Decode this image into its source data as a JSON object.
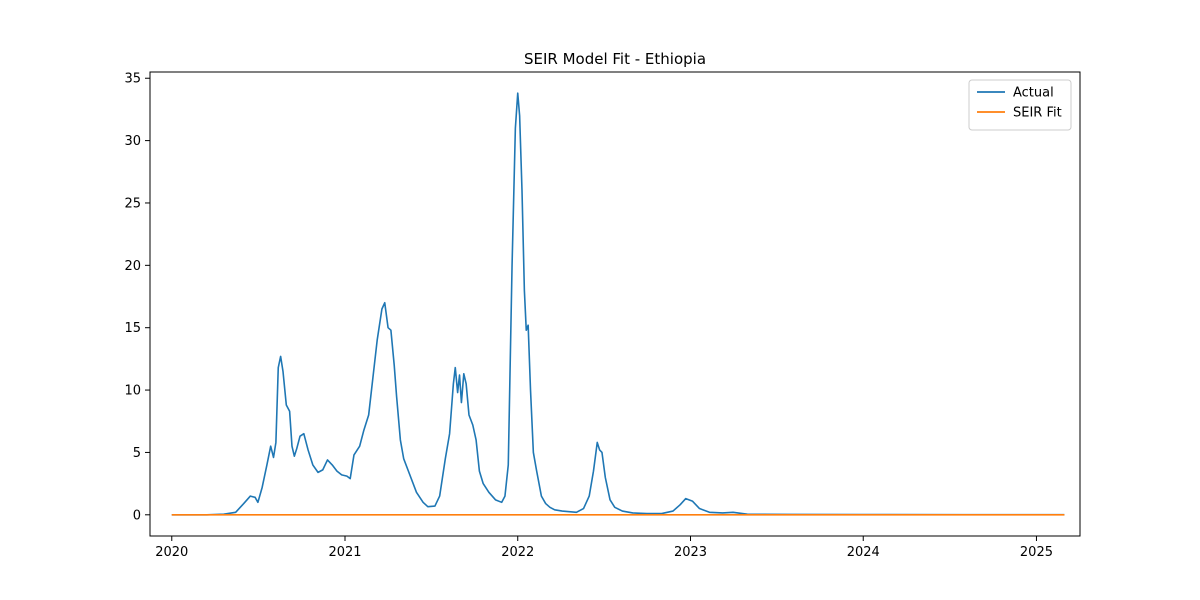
{
  "chart_data": {
    "type": "line",
    "title": "SEIR Model Fit - Ethiopia",
    "xlabel": "",
    "ylabel": "",
    "xlim": [
      "2019-11-16",
      "2025-04-03"
    ],
    "ylim": [
      -1.7,
      35.5
    ],
    "x_ticks": [
      "2020-01-01",
      "2021-01-01",
      "2022-01-01",
      "2023-01-01",
      "2024-01-01",
      "2025-01-01"
    ],
    "x_tick_labels": [
      "2020",
      "2021",
      "2022",
      "2023",
      "2024",
      "2025"
    ],
    "y_ticks": [
      0,
      5,
      10,
      15,
      20,
      25,
      30,
      35
    ],
    "y_tick_labels": [
      "0",
      "5",
      "10",
      "15",
      "20",
      "25",
      "30",
      "35"
    ],
    "grid": false,
    "legend_position": "top-right",
    "series": [
      {
        "name": "Actual",
        "color": "#1f77b4",
        "points": [
          [
            "2020-01-01",
            0
          ],
          [
            "2020-03-15",
            0
          ],
          [
            "2020-04-20",
            0.05
          ],
          [
            "2020-05-15",
            0.2
          ],
          [
            "2020-06-01",
            0.9
          ],
          [
            "2020-06-15",
            1.5
          ],
          [
            "2020-06-25",
            1.4
          ],
          [
            "2020-07-01",
            1.0
          ],
          [
            "2020-07-10",
            2.2
          ],
          [
            "2020-07-20",
            4.0
          ],
          [
            "2020-07-28",
            5.5
          ],
          [
            "2020-08-03",
            4.6
          ],
          [
            "2020-08-08",
            5.8
          ],
          [
            "2020-08-13",
            11.8
          ],
          [
            "2020-08-18",
            12.7
          ],
          [
            "2020-08-23",
            11.5
          ],
          [
            "2020-08-30",
            8.8
          ],
          [
            "2020-09-06",
            8.3
          ],
          [
            "2020-09-11",
            5.5
          ],
          [
            "2020-09-16",
            4.7
          ],
          [
            "2020-09-21",
            5.3
          ],
          [
            "2020-09-28",
            6.3
          ],
          [
            "2020-10-06",
            6.5
          ],
          [
            "2020-10-15",
            5.2
          ],
          [
            "2020-10-25",
            4.0
          ],
          [
            "2020-11-05",
            3.4
          ],
          [
            "2020-11-15",
            3.6
          ],
          [
            "2020-11-25",
            4.4
          ],
          [
            "2020-12-05",
            4.0
          ],
          [
            "2020-12-15",
            3.5
          ],
          [
            "2020-12-25",
            3.2
          ],
          [
            "2021-01-05",
            3.1
          ],
          [
            "2021-01-12",
            2.9
          ],
          [
            "2021-01-20",
            4.8
          ],
          [
            "2021-02-01",
            5.5
          ],
          [
            "2021-02-10",
            6.8
          ],
          [
            "2021-02-20",
            8.0
          ],
          [
            "2021-03-01",
            11.0
          ],
          [
            "2021-03-10",
            14.0
          ],
          [
            "2021-03-20",
            16.5
          ],
          [
            "2021-03-26",
            17.0
          ],
          [
            "2021-04-02",
            15.0
          ],
          [
            "2021-04-08",
            14.8
          ],
          [
            "2021-04-15",
            12.0
          ],
          [
            "2021-04-20",
            9.5
          ],
          [
            "2021-04-28",
            6.0
          ],
          [
            "2021-05-05",
            4.5
          ],
          [
            "2021-05-15",
            3.5
          ],
          [
            "2021-06-01",
            1.8
          ],
          [
            "2021-06-15",
            1.0
          ],
          [
            "2021-06-25",
            0.65
          ],
          [
            "2021-07-10",
            0.7
          ],
          [
            "2021-07-20",
            1.5
          ],
          [
            "2021-08-01",
            4.5
          ],
          [
            "2021-08-10",
            6.5
          ],
          [
            "2021-08-18",
            10.5
          ],
          [
            "2021-08-22",
            11.8
          ],
          [
            "2021-08-27",
            9.8
          ],
          [
            "2021-08-31",
            11.2
          ],
          [
            "2021-09-04",
            9.0
          ],
          [
            "2021-09-09",
            11.3
          ],
          [
            "2021-09-14",
            10.5
          ],
          [
            "2021-09-20",
            8.0
          ],
          [
            "2021-09-28",
            7.2
          ],
          [
            "2021-10-05",
            6.0
          ],
          [
            "2021-10-12",
            3.5
          ],
          [
            "2021-10-20",
            2.5
          ],
          [
            "2021-11-01",
            1.8
          ],
          [
            "2021-11-15",
            1.2
          ],
          [
            "2021-11-28",
            1.0
          ],
          [
            "2021-12-05",
            1.5
          ],
          [
            "2021-12-12",
            4.0
          ],
          [
            "2021-12-20",
            20.0
          ],
          [
            "2021-12-27",
            31.0
          ],
          [
            "2022-01-01",
            33.8
          ],
          [
            "2022-01-05",
            32.0
          ],
          [
            "2022-01-10",
            26.0
          ],
          [
            "2022-01-15",
            18.0
          ],
          [
            "2022-01-19",
            14.8
          ],
          [
            "2022-01-23",
            15.2
          ],
          [
            "2022-01-28",
            10.0
          ],
          [
            "2022-02-03",
            5.0
          ],
          [
            "2022-02-10",
            3.5
          ],
          [
            "2022-02-20",
            1.5
          ],
          [
            "2022-03-01",
            0.9
          ],
          [
            "2022-03-10",
            0.6
          ],
          [
            "2022-03-20",
            0.4
          ],
          [
            "2022-04-05",
            0.3
          ],
          [
            "2022-04-20",
            0.25
          ],
          [
            "2022-05-05",
            0.2
          ],
          [
            "2022-05-20",
            0.5
          ],
          [
            "2022-06-01",
            1.5
          ],
          [
            "2022-06-10",
            3.5
          ],
          [
            "2022-06-18",
            5.8
          ],
          [
            "2022-06-23",
            5.2
          ],
          [
            "2022-06-28",
            5.0
          ],
          [
            "2022-07-05",
            3.0
          ],
          [
            "2022-07-15",
            1.2
          ],
          [
            "2022-07-25",
            0.6
          ],
          [
            "2022-08-10",
            0.3
          ],
          [
            "2022-09-01",
            0.15
          ],
          [
            "2022-10-01",
            0.1
          ],
          [
            "2022-11-01",
            0.1
          ],
          [
            "2022-11-25",
            0.3
          ],
          [
            "2022-12-10",
            0.8
          ],
          [
            "2022-12-22",
            1.3
          ],
          [
            "2023-01-05",
            1.1
          ],
          [
            "2023-01-20",
            0.5
          ],
          [
            "2023-02-10",
            0.2
          ],
          [
            "2023-03-10",
            0.15
          ],
          [
            "2023-04-01",
            0.2
          ],
          [
            "2023-05-01",
            0.05
          ],
          [
            "2023-08-01",
            0.03
          ],
          [
            "2024-01-01",
            0.02
          ],
          [
            "2024-08-01",
            0.01
          ],
          [
            "2025-03-01",
            0.01
          ]
        ]
      },
      {
        "name": "SEIR Fit",
        "color": "#ff7f0e",
        "points": [
          [
            "2020-01-01",
            0
          ],
          [
            "2025-03-01",
            0
          ]
        ]
      }
    ]
  }
}
